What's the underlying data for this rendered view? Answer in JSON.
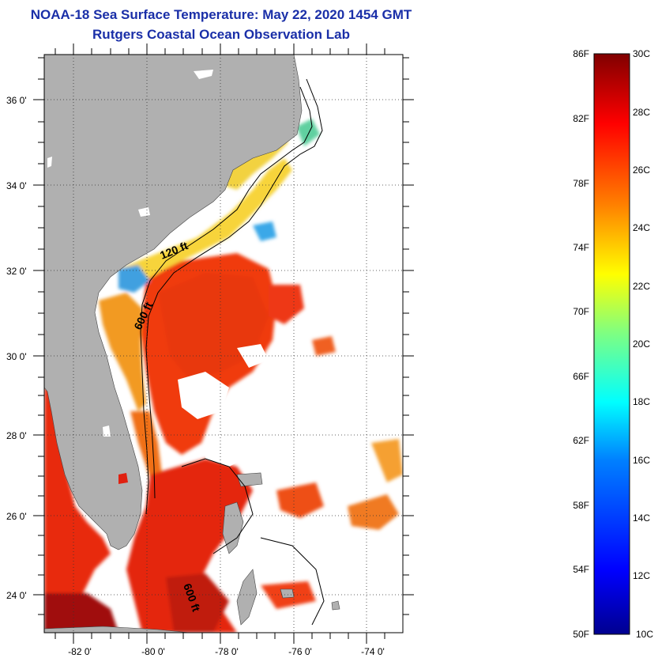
{
  "header": {
    "title": "NOAA-18 Sea Surface Temperature:  May 22, 2020 1454 GMT",
    "subtitle": "Rutgers Coastal Ocean Observation Lab"
  },
  "map": {
    "lat_labels": [
      "36 0'",
      "34 0'",
      "32 0'",
      "30 0'",
      "28 0'",
      "26 0'",
      "24 0'"
    ],
    "lon_labels": [
      "-82 0'",
      "-80 0'",
      "-78 0'",
      "-76 0'",
      "-74 0'"
    ],
    "isobaths": [
      "120 ft",
      "600 ft",
      "600 ft"
    ],
    "land_color": "#b0b0b0",
    "no_data_color": "#ffffff"
  },
  "colorbar": {
    "fahrenheit_labels": [
      "86F",
      "82F",
      "78F",
      "74F",
      "70F",
      "66F",
      "62F",
      "58F",
      "54F",
      "50F"
    ],
    "celsius_labels": [
      "30C",
      "28C",
      "26C",
      "24C",
      "22C",
      "20C",
      "18C",
      "16C",
      "14C",
      "12C",
      "10C"
    ],
    "colors": [
      "#00008f",
      "#0000ff",
      "#0080ff",
      "#00ffff",
      "#80ff80",
      "#ffff00",
      "#ff8000",
      "#ff0000",
      "#800000"
    ]
  }
}
